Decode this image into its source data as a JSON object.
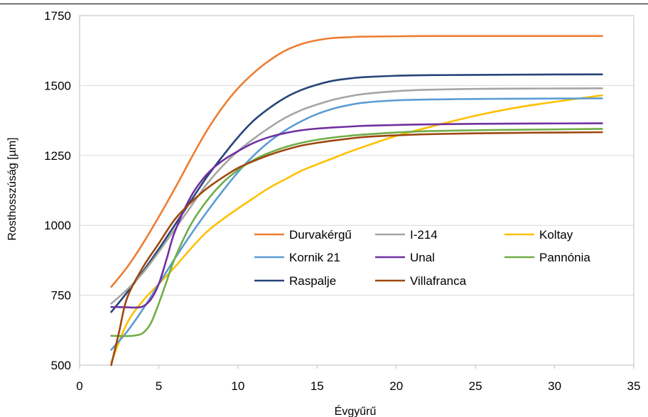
{
  "chart_data": {
    "type": "line",
    "title": "",
    "xlabel": "Évgyűrű",
    "ylabel": "Rosthosszúság [µm]",
    "xlim": [
      0,
      35
    ],
    "ylim": [
      500,
      1750
    ],
    "x_ticks": [
      "0",
      "5",
      "10",
      "15",
      "20",
      "25",
      "30",
      "35"
    ],
    "y_ticks": [
      "500",
      "750",
      "1000",
      "1250",
      "1500",
      "1750"
    ],
    "grid": true,
    "legend_position": "center-right inside plot",
    "series": [
      {
        "name": "Durvakérgű",
        "color": "#ED7D31",
        "x": [
          2,
          3,
          4,
          5,
          6,
          7,
          8,
          9,
          10,
          11,
          12,
          13,
          14,
          15,
          16,
          17,
          18,
          20,
          22,
          25,
          28,
          33
        ],
        "y": [
          780,
          850,
          935,
          1030,
          1130,
          1235,
          1335,
          1420,
          1490,
          1545,
          1590,
          1625,
          1648,
          1662,
          1670,
          1673,
          1675,
          1676,
          1677,
          1677,
          1677,
          1677
        ]
      },
      {
        "name": "I-214",
        "color": "#A5A5A5",
        "x": [
          2,
          3,
          4,
          5,
          6,
          7,
          8,
          9,
          10,
          11,
          12,
          13,
          14,
          15,
          16,
          17,
          18,
          20,
          22,
          25,
          28,
          33
        ],
        "y": [
          720,
          770,
          830,
          905,
          985,
          1065,
          1145,
          1210,
          1265,
          1310,
          1350,
          1385,
          1412,
          1432,
          1449,
          1461,
          1470,
          1480,
          1485,
          1488,
          1489,
          1490
        ]
      },
      {
        "name": "Koltay",
        "color": "#FFC000",
        "x": [
          2,
          3,
          4,
          5,
          6,
          7,
          8,
          9,
          10,
          11,
          12,
          13,
          14,
          15,
          16,
          17,
          18,
          20,
          22,
          25,
          28,
          33
        ],
        "y": [
          510,
          650,
          730,
          790,
          850,
          915,
          975,
          1020,
          1060,
          1098,
          1135,
          1165,
          1195,
          1218,
          1240,
          1262,
          1282,
          1320,
          1350,
          1392,
          1425,
          1465
        ]
      },
      {
        "name": "Kornik 21",
        "color": "#5B9BD5",
        "x": [
          2,
          3,
          4,
          5,
          6,
          7,
          8,
          9,
          10,
          11,
          12,
          13,
          14,
          15,
          16,
          17,
          18,
          20,
          22,
          25,
          28,
          33
        ],
        "y": [
          555,
          620,
          700,
          790,
          880,
          965,
          1045,
          1120,
          1190,
          1250,
          1300,
          1340,
          1372,
          1398,
          1417,
          1430,
          1439,
          1447,
          1450,
          1452,
          1453,
          1454
        ]
      },
      {
        "name": "Unal",
        "color": "#7030A0",
        "x": [
          2,
          3,
          3.5,
          4,
          4.5,
          5,
          5.5,
          6,
          7,
          8,
          9,
          10,
          11,
          12,
          13,
          14,
          15,
          16,
          17,
          18,
          20,
          22,
          25,
          28,
          33
        ],
        "y": [
          708,
          707,
          706,
          710,
          735,
          790,
          880,
          975,
          1100,
          1180,
          1230,
          1265,
          1295,
          1316,
          1330,
          1340,
          1346,
          1350,
          1353,
          1356,
          1359,
          1361,
          1363,
          1364,
          1365
        ]
      },
      {
        "name": "Pannónia",
        "color": "#70AD47",
        "x": [
          2,
          3,
          3.5,
          4,
          4.5,
          5,
          5.5,
          6,
          7,
          8,
          9,
          10,
          11,
          12,
          13,
          14,
          15,
          16,
          17,
          18,
          20,
          22,
          25,
          28,
          33
        ],
        "y": [
          605,
          604,
          606,
          615,
          650,
          720,
          800,
          880,
          1000,
          1085,
          1150,
          1198,
          1234,
          1260,
          1280,
          1295,
          1306,
          1314,
          1320,
          1325,
          1332,
          1337,
          1340,
          1342,
          1345
        ]
      },
      {
        "name": "Raspalje",
        "color": "#264478",
        "x": [
          2,
          3,
          4,
          5,
          6,
          7,
          8,
          9,
          10,
          11,
          12,
          13,
          14,
          15,
          16,
          17,
          18,
          20,
          22,
          25,
          28,
          33
        ],
        "y": [
          690,
          760,
          835,
          915,
          1000,
          1085,
          1170,
          1245,
          1315,
          1375,
          1420,
          1457,
          1484,
          1503,
          1517,
          1525,
          1530,
          1535,
          1537,
          1538,
          1539,
          1540
        ]
      },
      {
        "name": "Villafranca",
        "color": "#9E480E",
        "x": [
          2,
          2.5,
          3,
          4,
          5,
          6,
          7,
          8,
          9,
          10,
          11,
          12,
          13,
          14,
          15,
          16,
          17,
          18,
          20,
          22,
          25,
          28,
          33
        ],
        "y": [
          500,
          620,
          740,
          850,
          935,
          1020,
          1080,
          1130,
          1170,
          1205,
          1230,
          1252,
          1270,
          1285,
          1295,
          1303,
          1310,
          1316,
          1322,
          1326,
          1329,
          1331,
          1333
        ]
      }
    ]
  }
}
